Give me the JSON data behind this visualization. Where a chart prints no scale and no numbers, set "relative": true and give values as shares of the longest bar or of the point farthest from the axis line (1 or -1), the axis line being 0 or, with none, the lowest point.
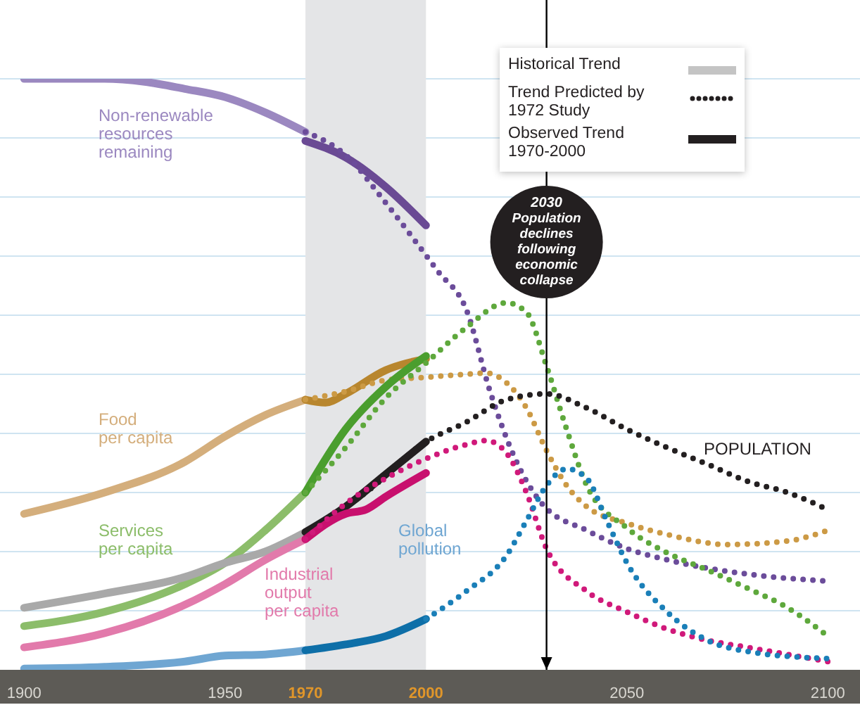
{
  "chart_data": {
    "type": "line",
    "relative": true,
    "grid": "y",
    "xlim": [
      1894,
      2108
    ],
    "xticks": [
      1900,
      1950,
      1970,
      2000,
      2050,
      2100
    ],
    "bands": [
      {
        "axis": "x",
        "from": 1970,
        "to": 2000,
        "color": "#e4e5e7"
      }
    ],
    "ref_lines": [
      {
        "axis": "x",
        "value": 2030,
        "color": "#000000",
        "label": "2030\nPopulation\ndeclines\nfollowing\neconomic\ncollapse"
      }
    ],
    "annotations": [
      "Historical Trend",
      "Trend Predicted by 1972 Study",
      "Observed Trend 1970-2000"
    ],
    "series": [
      {
        "name": "Non-renewable\nresources\nremaining",
        "color": "#9b88c0",
        "line_style": "solid",
        "x": [
          1900,
          1920,
          1930,
          1940,
          1950,
          1960,
          1970
        ],
        "values": [
          1.0,
          1.0,
          0.995,
          0.983,
          0.969,
          0.943,
          0.91
        ]
      },
      {
        "color": "#6a4a94",
        "line_style": "solid",
        "x": [
          1970,
          1980,
          1990,
          2000
        ],
        "values": [
          0.895,
          0.867,
          0.817,
          0.752
        ]
      },
      {
        "color": "#6b4c9a",
        "line_style": "dotted",
        "x": [
          1970,
          1980,
          1990,
          2003,
          2010,
          2016,
          2022,
          2029,
          2040,
          2050,
          2060,
          2080,
          2100
        ],
        "values": [
          0.91,
          0.871,
          0.79,
          0.674,
          0.61,
          0.47,
          0.36,
          0.28,
          0.236,
          0.205,
          0.186,
          0.162,
          0.15
        ]
      },
      {
        "name": "Food\nper capita",
        "color": "#d4ae7c",
        "line_style": "solid",
        "x": [
          1900,
          1920,
          1940,
          1950,
          1960,
          1970
        ],
        "values": [
          0.264,
          0.3,
          0.352,
          0.395,
          0.431,
          0.457
        ]
      },
      {
        "color": "#b8862e",
        "line_style": "solid",
        "x": [
          1970,
          1975,
          1980,
          1990,
          2000
        ],
        "values": [
          0.457,
          0.452,
          0.467,
          0.507,
          0.526
        ]
      },
      {
        "color": "#cc9a45",
        "line_style": "dotted",
        "x": [
          1970,
          1980,
          1990,
          2000,
          2010,
          2015,
          2020,
          2025,
          2030,
          2035,
          2040,
          2050,
          2060,
          2075,
          2090,
          2100
        ],
        "values": [
          0.457,
          0.471,
          0.49,
          0.495,
          0.5,
          0.502,
          0.486,
          0.443,
          0.371,
          0.312,
          0.276,
          0.248,
          0.229,
          0.212,
          0.218,
          0.236
        ]
      },
      {
        "name": "Services\nper capita",
        "color": "#8cbd6a",
        "line_style": "solid",
        "x": [
          1900,
          1920,
          1940,
          1950,
          1960,
          1970
        ],
        "values": [
          0.074,
          0.098,
          0.145,
          0.181,
          0.236,
          0.3
        ]
      },
      {
        "color": "#4a9e2e",
        "line_style": "solid",
        "x": [
          1970,
          1980,
          1990,
          2000
        ],
        "values": [
          0.3,
          0.407,
          0.479,
          0.531
        ]
      },
      {
        "color": "#5ea83c",
        "line_style": "dotted",
        "x": [
          1970,
          1980,
          1990,
          2000,
          2010,
          2020,
          2025,
          2030,
          2035,
          2040,
          2050,
          2060,
          2070,
          2080,
          2090,
          2100
        ],
        "values": [
          0.3,
          0.376,
          0.46,
          0.519,
          0.579,
          0.621,
          0.605,
          0.514,
          0.407,
          0.312,
          0.24,
          0.198,
          0.169,
          0.138,
          0.105,
          0.057
        ]
      },
      {
        "color": "#a9a9a9",
        "line_style": "solid",
        "x": [
          1900,
          1920,
          1940,
          1950,
          1960,
          1970
        ],
        "values": [
          0.105,
          0.129,
          0.157,
          0.181,
          0.2,
          0.233
        ]
      },
      {
        "color": "#231f20",
        "line_style": "solid",
        "x": [
          1970,
          1980,
          1990,
          2000
        ],
        "values": [
          0.233,
          0.276,
          0.331,
          0.386
        ]
      },
      {
        "name": "POPULATION",
        "color": "#231f20",
        "line_style": "dotted",
        "x": [
          1970,
          1985,
          2000,
          2010,
          2020,
          2030,
          2040,
          2050,
          2060,
          2070,
          2080,
          2090,
          2100
        ],
        "values": [
          0.233,
          0.3,
          0.386,
          0.419,
          0.457,
          0.467,
          0.443,
          0.407,
          0.376,
          0.348,
          0.319,
          0.3,
          0.271
        ]
      },
      {
        "name": "Industrial\noutput\nper capita",
        "color": "#e27aab",
        "line_style": "solid",
        "x": [
          1900,
          1920,
          1940,
          1950,
          1960,
          1970
        ],
        "values": [
          0.038,
          0.062,
          0.11,
          0.145,
          0.186,
          0.221
        ]
      },
      {
        "color": "#c8106e",
        "line_style": "solid",
        "x": [
          1970,
          1980,
          1985,
          1990,
          2000
        ],
        "values": [
          0.221,
          0.264,
          0.271,
          0.293,
          0.333
        ]
      },
      {
        "color": "#d0197a",
        "line_style": "dotted",
        "x": [
          1970,
          1980,
          1990,
          2000,
          2010,
          2015,
          2020,
          2025,
          2030,
          2040,
          2050,
          2060,
          2070,
          2080,
          2100
        ],
        "values": [
          0.221,
          0.281,
          0.324,
          0.357,
          0.381,
          0.388,
          0.367,
          0.3,
          0.205,
          0.133,
          0.098,
          0.069,
          0.05,
          0.038,
          0.014
        ]
      },
      {
        "name": "Global\npollution",
        "color": "#6fa6d2",
        "line_style": "solid",
        "x": [
          1900,
          1920,
          1940,
          1950,
          1960,
          1970
        ],
        "values": [
          0.002,
          0.005,
          0.014,
          0.024,
          0.026,
          0.033
        ]
      },
      {
        "color": "#0e6fa8",
        "line_style": "solid",
        "x": [
          1970,
          1980,
          1990,
          2000
        ],
        "values": [
          0.033,
          0.043,
          0.057,
          0.086
        ]
      },
      {
        "color": "#1a7fb8",
        "line_style": "dotted",
        "x": [
          2000,
          2010,
          2020,
          2025,
          2030,
          2035,
          2040,
          2045,
          2050,
          2060,
          2070,
          2080,
          2100
        ],
        "values": [
          0.086,
          0.133,
          0.193,
          0.252,
          0.312,
          0.34,
          0.324,
          0.252,
          0.181,
          0.098,
          0.05,
          0.031,
          0.019
        ]
      }
    ]
  }
}
